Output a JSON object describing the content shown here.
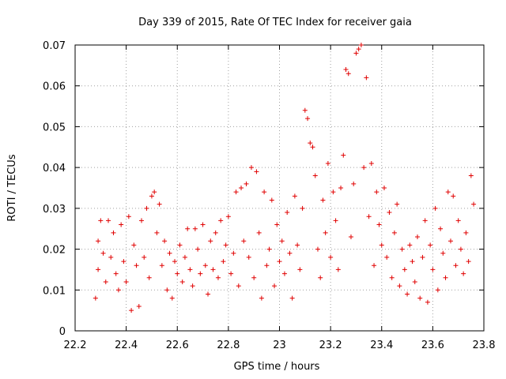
{
  "chart_data": {
    "type": "scatter",
    "title": "Day 339 of 2015, Rate Of TEC Index for receiver gaia",
    "xlabel": "GPS time / hours",
    "ylabel": "ROTI / TECUs",
    "xlim": [
      22.2,
      23.8
    ],
    "ylim": [
      0,
      0.07
    ],
    "xticks": [
      "22.2",
      "22.4",
      "22.6",
      "22.8",
      "23",
      "23.2",
      "23.4",
      "23.6",
      "23.8"
    ],
    "yticks": [
      "0",
      "0.01",
      "0.02",
      "0.03",
      "0.04",
      "0.05",
      "0.06",
      "0.07"
    ],
    "grid": true,
    "marker": "+",
    "color": "#e00000",
    "series": [
      {
        "points": [
          [
            22.28,
            0.008
          ],
          [
            22.29,
            0.015
          ],
          [
            22.29,
            0.022
          ],
          [
            22.3,
            0.027
          ],
          [
            22.31,
            0.019
          ],
          [
            22.32,
            0.012
          ],
          [
            22.33,
            0.027
          ],
          [
            22.34,
            0.018
          ],
          [
            22.35,
            0.024
          ],
          [
            22.36,
            0.014
          ],
          [
            22.37,
            0.01
          ],
          [
            22.38,
            0.026
          ],
          [
            22.39,
            0.017
          ],
          [
            22.4,
            0.012
          ],
          [
            22.41,
            0.028
          ],
          [
            22.42,
            0.005
          ],
          [
            22.43,
            0.021
          ],
          [
            22.44,
            0.016
          ],
          [
            22.45,
            0.006
          ],
          [
            22.46,
            0.027
          ],
          [
            22.47,
            0.018
          ],
          [
            22.48,
            0.03
          ],
          [
            22.49,
            0.013
          ],
          [
            22.5,
            0.033
          ],
          [
            22.51,
            0.034
          ],
          [
            22.52,
            0.024
          ],
          [
            22.53,
            0.031
          ],
          [
            22.54,
            0.016
          ],
          [
            22.55,
            0.022
          ],
          [
            22.56,
            0.01
          ],
          [
            22.57,
            0.019
          ],
          [
            22.58,
            0.008
          ],
          [
            22.59,
            0.017
          ],
          [
            22.6,
            0.014
          ],
          [
            22.61,
            0.021
          ],
          [
            22.62,
            0.012
          ],
          [
            22.63,
            0.018
          ],
          [
            22.64,
            0.025
          ],
          [
            22.65,
            0.015
          ],
          [
            22.66,
            0.011
          ],
          [
            22.67,
            0.025
          ],
          [
            22.68,
            0.02
          ],
          [
            22.69,
            0.014
          ],
          [
            22.7,
            0.026
          ],
          [
            22.71,
            0.016
          ],
          [
            22.72,
            0.009
          ],
          [
            22.73,
            0.022
          ],
          [
            22.74,
            0.015
          ],
          [
            22.75,
            0.024
          ],
          [
            22.76,
            0.013
          ],
          [
            22.77,
            0.027
          ],
          [
            22.78,
            0.017
          ],
          [
            22.79,
            0.021
          ],
          [
            22.8,
            0.028
          ],
          [
            22.81,
            0.014
          ],
          [
            22.82,
            0.019
          ],
          [
            22.83,
            0.034
          ],
          [
            22.84,
            0.011
          ],
          [
            22.85,
            0.035
          ],
          [
            22.86,
            0.022
          ],
          [
            22.87,
            0.036
          ],
          [
            22.88,
            0.018
          ],
          [
            22.89,
            0.04
          ],
          [
            22.9,
            0.013
          ],
          [
            22.91,
            0.039
          ],
          [
            22.92,
            0.024
          ],
          [
            22.93,
            0.008
          ],
          [
            22.94,
            0.034
          ],
          [
            22.95,
            0.016
          ],
          [
            22.96,
            0.02
          ],
          [
            22.97,
            0.032
          ],
          [
            22.98,
            0.011
          ],
          [
            22.99,
            0.026
          ],
          [
            23.0,
            0.017
          ],
          [
            23.01,
            0.022
          ],
          [
            23.02,
            0.014
          ],
          [
            23.03,
            0.029
          ],
          [
            23.04,
            0.019
          ],
          [
            23.05,
            0.008
          ],
          [
            23.06,
            0.033
          ],
          [
            23.07,
            0.021
          ],
          [
            23.08,
            0.015
          ],
          [
            23.09,
            0.03
          ],
          [
            23.1,
            0.054
          ],
          [
            23.11,
            0.052
          ],
          [
            23.12,
            0.046
          ],
          [
            23.13,
            0.045
          ],
          [
            23.14,
            0.038
          ],
          [
            23.15,
            0.02
          ],
          [
            23.16,
            0.013
          ],
          [
            23.17,
            0.032
          ],
          [
            23.18,
            0.024
          ],
          [
            23.19,
            0.041
          ],
          [
            23.2,
            0.018
          ],
          [
            23.21,
            0.034
          ],
          [
            23.22,
            0.027
          ],
          [
            23.23,
            0.015
          ],
          [
            23.24,
            0.035
          ],
          [
            23.25,
            0.043
          ],
          [
            23.26,
            0.064
          ],
          [
            23.27,
            0.063
          ],
          [
            23.28,
            0.023
          ],
          [
            23.29,
            0.036
          ],
          [
            23.3,
            0.068
          ],
          [
            23.31,
            0.069
          ],
          [
            23.32,
            0.07
          ],
          [
            23.33,
            0.04
          ],
          [
            23.34,
            0.062
          ],
          [
            23.35,
            0.028
          ],
          [
            23.36,
            0.041
          ],
          [
            23.37,
            0.016
          ],
          [
            23.38,
            0.034
          ],
          [
            23.39,
            0.026
          ],
          [
            23.4,
            0.021
          ],
          [
            23.41,
            0.035
          ],
          [
            23.42,
            0.018
          ],
          [
            23.43,
            0.029
          ],
          [
            23.44,
            0.013
          ],
          [
            23.45,
            0.024
          ],
          [
            23.46,
            0.031
          ],
          [
            23.47,
            0.011
          ],
          [
            23.48,
            0.02
          ],
          [
            23.49,
            0.015
          ],
          [
            23.5,
            0.009
          ],
          [
            23.51,
            0.021
          ],
          [
            23.52,
            0.017
          ],
          [
            23.53,
            0.012
          ],
          [
            23.54,
            0.023
          ],
          [
            23.55,
            0.008
          ],
          [
            23.56,
            0.018
          ],
          [
            23.57,
            0.027
          ],
          [
            23.58,
            0.007
          ],
          [
            23.59,
            0.021
          ],
          [
            23.6,
            0.015
          ],
          [
            23.61,
            0.03
          ],
          [
            23.62,
            0.01
          ],
          [
            23.63,
            0.025
          ],
          [
            23.64,
            0.019
          ],
          [
            23.65,
            0.013
          ],
          [
            23.66,
            0.034
          ],
          [
            23.67,
            0.022
          ],
          [
            23.68,
            0.033
          ],
          [
            23.69,
            0.016
          ],
          [
            23.7,
            0.027
          ],
          [
            23.71,
            0.02
          ],
          [
            23.72,
            0.014
          ],
          [
            23.73,
            0.024
          ],
          [
            23.74,
            0.017
          ],
          [
            23.75,
            0.038
          ],
          [
            23.76,
            0.031
          ]
        ]
      }
    ]
  }
}
